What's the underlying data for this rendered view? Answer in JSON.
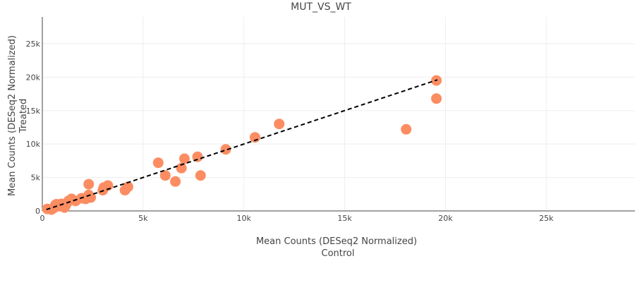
{
  "chart_data": {
    "type": "scatter",
    "title": "MUT_VS_WT",
    "xlabel_lines": [
      "Mean Counts (DESeq2 Normalized)",
      "Control"
    ],
    "ylabel_lines": [
      "Mean Counts (DESeq2 Normalized)",
      "Treated"
    ],
    "xlim": [
      0,
      29400
    ],
    "ylim": [
      0,
      29000
    ],
    "x_ticks": [
      0,
      5000,
      10000,
      15000,
      20000,
      25000
    ],
    "x_tick_labels": [
      "0",
      "5k",
      "10k",
      "15k",
      "20k",
      "25k"
    ],
    "y_ticks": [
      0,
      5000,
      10000,
      15000,
      20000,
      25000
    ],
    "y_tick_labels": [
      "0",
      "5k",
      "10k",
      "15k",
      "20k",
      "25k"
    ],
    "grid": true,
    "marker_color": "#fc8d62",
    "reference_line": {
      "style": "dashed",
      "color": "#000000",
      "points": [
        [
          200,
          200
        ],
        [
          19600,
          19600
        ]
      ]
    },
    "points": [
      {
        "x": 250,
        "y": 300
      },
      {
        "x": 450,
        "y": 200
      },
      {
        "x": 550,
        "y": 400
      },
      {
        "x": 650,
        "y": 900
      },
      {
        "x": 700,
        "y": 1000
      },
      {
        "x": 800,
        "y": 700
      },
      {
        "x": 950,
        "y": 1050
      },
      {
        "x": 1050,
        "y": 900
      },
      {
        "x": 1100,
        "y": 500
      },
      {
        "x": 1150,
        "y": 800
      },
      {
        "x": 1250,
        "y": 1300
      },
      {
        "x": 1300,
        "y": 1500
      },
      {
        "x": 1450,
        "y": 1800
      },
      {
        "x": 1650,
        "y": 1500
      },
      {
        "x": 1950,
        "y": 1900
      },
      {
        "x": 2150,
        "y": 1800
      },
      {
        "x": 2300,
        "y": 2400
      },
      {
        "x": 2300,
        "y": 4000
      },
      {
        "x": 2400,
        "y": 2000
      },
      {
        "x": 3000,
        "y": 3100
      },
      {
        "x": 3050,
        "y": 3500
      },
      {
        "x": 3250,
        "y": 3800
      },
      {
        "x": 4100,
        "y": 3100
      },
      {
        "x": 4250,
        "y": 3600
      },
      {
        "x": 5750,
        "y": 7200
      },
      {
        "x": 6100,
        "y": 5300
      },
      {
        "x": 6600,
        "y": 4400
      },
      {
        "x": 6900,
        "y": 6400
      },
      {
        "x": 7050,
        "y": 7800
      },
      {
        "x": 7700,
        "y": 8100
      },
      {
        "x": 7850,
        "y": 5300
      },
      {
        "x": 9100,
        "y": 9200
      },
      {
        "x": 10550,
        "y": 11000
      },
      {
        "x": 11750,
        "y": 13000
      },
      {
        "x": 18050,
        "y": 12200
      },
      {
        "x": 19550,
        "y": 16800
      },
      {
        "x": 19550,
        "y": 19500
      }
    ]
  }
}
